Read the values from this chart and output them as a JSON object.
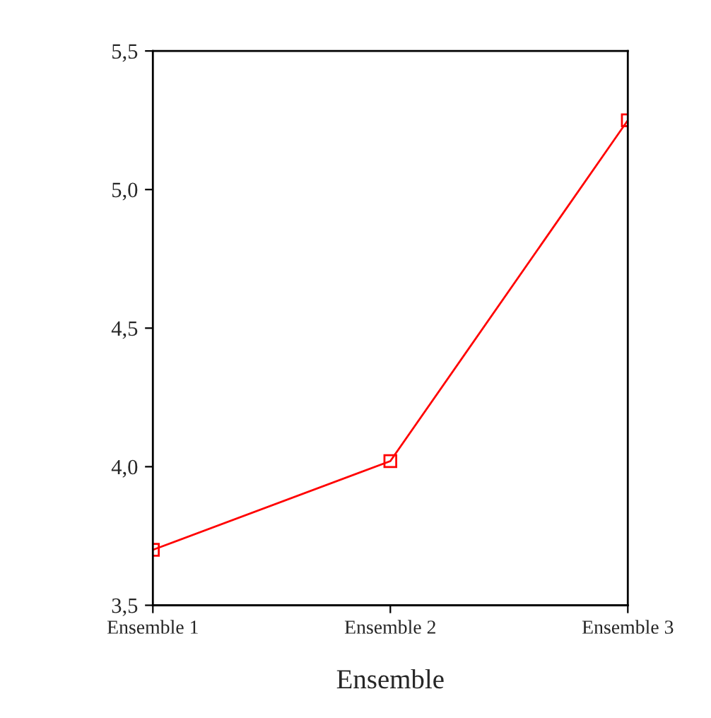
{
  "chart_data": {
    "type": "line",
    "xlabel": "Ensemble",
    "categories": [
      "Ensemble 1",
      "Ensemble 2",
      "Ensemble 3"
    ],
    "series": [
      {
        "color": "#ff0000",
        "values": [
          3.7,
          4.02,
          5.25
        ]
      }
    ],
    "ylim": [
      3.5,
      5.5
    ],
    "yticks": [
      {
        "value": 3.5,
        "label": "3,5"
      },
      {
        "value": 4.0,
        "label": "4,0"
      },
      {
        "value": 4.5,
        "label": "4,5"
      },
      {
        "value": 5.0,
        "label": "5,0"
      },
      {
        "value": 5.5,
        "label": "5,5"
      }
    ],
    "grid": false,
    "legend": false,
    "marker": "square",
    "line_style": "solid"
  }
}
